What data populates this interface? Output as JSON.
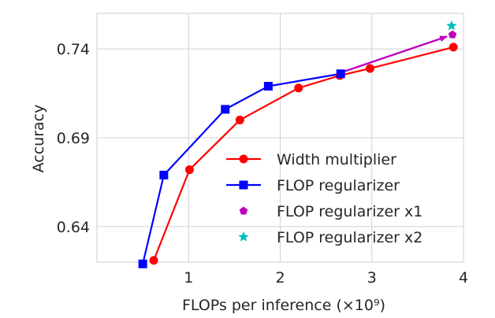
{
  "chart_data": {
    "type": "line",
    "xlabel": "FLOPs per inference",
    "xlabel_unit": "(×10⁹)",
    "ylabel": "Accuracy",
    "xlim": [
      0,
      4
    ],
    "ylim": [
      0.62,
      0.76
    ],
    "xticks": [
      1,
      2,
      3,
      4
    ],
    "xtick_labels": [
      "1",
      "2",
      "3",
      "4"
    ],
    "yticks": [
      0.64,
      0.69,
      0.74
    ],
    "ytick_labels": [
      "0.64",
      "0.69",
      "0.74"
    ],
    "grid": true,
    "legend_position": "lower-right",
    "series": [
      {
        "name": "Width multiplier",
        "kind": "line",
        "marker": "circle",
        "color": "#ff0000",
        "x": [
          0.62,
          1.01,
          1.56,
          2.2,
          2.65,
          2.98,
          3.89
        ],
        "y": [
          0.621,
          0.672,
          0.7,
          0.718,
          0.725,
          0.729,
          0.741
        ]
      },
      {
        "name": "FLOP regularizer",
        "kind": "line",
        "marker": "square",
        "color": "#0000ff",
        "x": [
          0.5,
          0.73,
          1.4,
          1.87,
          2.66
        ],
        "y": [
          0.619,
          0.669,
          0.706,
          0.719,
          0.726
        ]
      },
      {
        "name": "FLOP regularizer x1",
        "kind": "point",
        "marker": "pentagon",
        "color": "#bf00bf",
        "x": [
          3.88
        ],
        "y": [
          0.748
        ]
      },
      {
        "name": "FLOP regularizer x2",
        "kind": "point",
        "marker": "star",
        "color": "#00bfbf",
        "x": [
          3.87
        ],
        "y": [
          0.753
        ]
      }
    ],
    "arrows": [
      {
        "color": "#bf00bf",
        "from": {
          "x": 2.68,
          "y": 0.727
        },
        "to": {
          "x": 3.82,
          "y": 0.747
        }
      }
    ]
  }
}
